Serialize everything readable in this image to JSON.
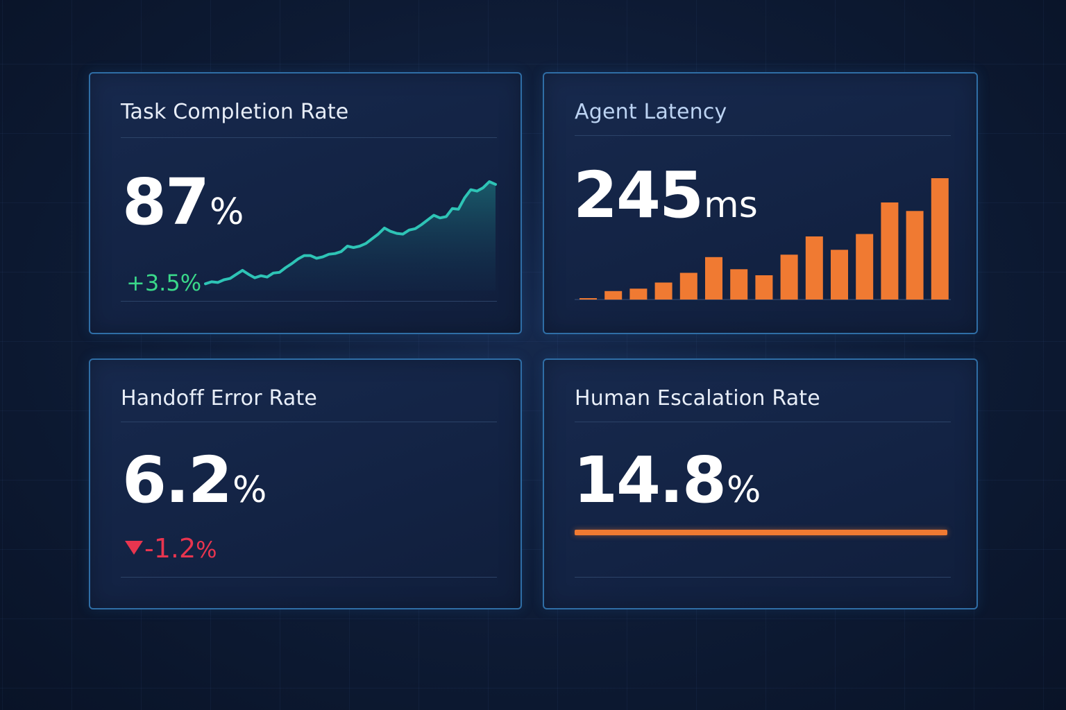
{
  "colors": {
    "background": "#0d1a33",
    "card_border": "#2f6ea6",
    "accent_teal": "#2ec4b6",
    "accent_orange": "#f07a32",
    "positive": "#3ad98a",
    "negative": "#e8354f"
  },
  "cards": {
    "task_completion": {
      "title": "Task Completion Rate",
      "value": "87",
      "unit": "%",
      "delta": "+3.5%"
    },
    "agent_latency": {
      "title": "Agent Latency",
      "value": "245",
      "unit": "ms"
    },
    "handoff_error": {
      "title": "Handoff Error Rate",
      "value": "6.2",
      "unit": "%",
      "delta_value": "-1.2",
      "delta_unit": "%",
      "delta_icon": "down-triangle-icon"
    },
    "human_escalation": {
      "title": "Human Escalation Rate",
      "value": "14.8",
      "unit": "%",
      "progress_fraction": 1.0
    }
  },
  "chart_data": [
    {
      "type": "area",
      "values": [
        10,
        13,
        12,
        16,
        18,
        24,
        30,
        24,
        19,
        22,
        20,
        26,
        27,
        34,
        40,
        47,
        52,
        52,
        48,
        50,
        54,
        55,
        58,
        66,
        64,
        66,
        70,
        77,
        84,
        93,
        88,
        85,
        84,
        90,
        92,
        98,
        105,
        112,
        108,
        110,
        122,
        121,
        138,
        150,
        148,
        153,
        162,
        158
      ],
      "title": "",
      "xlabel": "",
      "ylabel": ""
    },
    {
      "type": "bar",
      "values": [
        1,
        7,
        9,
        14,
        22,
        35,
        25,
        20,
        37,
        52,
        41,
        54,
        80,
        73,
        100
      ],
      "title": "",
      "xlabel": "",
      "ylabel": ""
    }
  ]
}
